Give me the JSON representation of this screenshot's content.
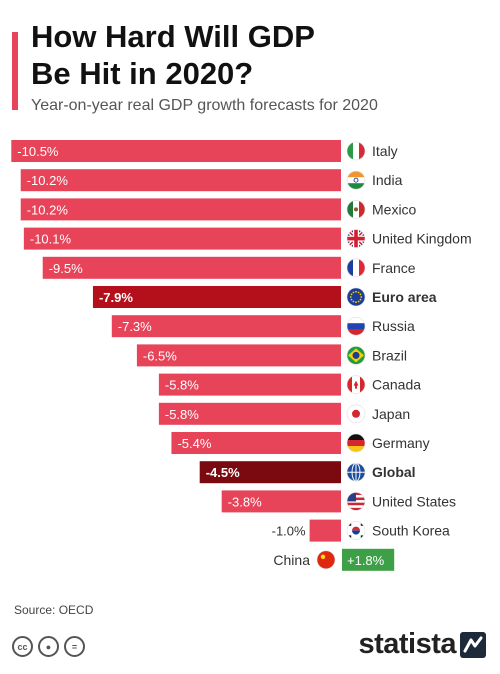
{
  "header": {
    "title_line1": "How Hard Will GDP",
    "title_line2": "Be Hit in 2020?",
    "subtitle": "Year-on-year real GDP growth forecasts for 2020"
  },
  "footer": {
    "source": "Source: OECD",
    "brand": "statista",
    "license_icons": [
      "cc-icon",
      "by-icon",
      "nd-icon"
    ]
  },
  "colors": {
    "negative": "#e84459",
    "highlight_euro": "#b3101c",
    "highlight_global": "#7a0a10",
    "positive": "#3ea046",
    "accent": "#e84459"
  },
  "chart_data": {
    "type": "bar",
    "orientation": "horizontal",
    "unit": "%",
    "xlim": [
      -10.5,
      1.8
    ],
    "categories": [
      "Italy",
      "India",
      "Mexico",
      "United Kingdom",
      "France",
      "Euro area",
      "Russia",
      "Brazil",
      "Canada",
      "Japan",
      "Germany",
      "Global",
      "United States",
      "South Korea",
      "China"
    ],
    "values": [
      -10.5,
      -10.2,
      -10.2,
      -10.1,
      -9.5,
      -7.9,
      -7.3,
      -6.5,
      -5.8,
      -5.8,
      -5.4,
      -4.5,
      -3.8,
      -1.0,
      1.8
    ],
    "labels": [
      "-10.5%",
      "-10.2%",
      "-10.2%",
      "-10.1%",
      "-9.5%",
      "-7.9%",
      "-7.3%",
      "-6.5%",
      "-5.8%",
      "-5.8%",
      "-5.4%",
      "-4.5%",
      "-3.8%",
      "-1.0%",
      "+1.8%"
    ],
    "highlighted": [
      "Euro area",
      "Global"
    ],
    "flags": [
      "italy-flag-icon",
      "india-flag-icon",
      "mexico-flag-icon",
      "uk-flag-icon",
      "france-flag-icon",
      "eu-flag-icon",
      "russia-flag-icon",
      "brazil-flag-icon",
      "canada-flag-icon",
      "japan-flag-icon",
      "germany-flag-icon",
      "globe-icon",
      "us-flag-icon",
      "south-korea-flag-icon",
      "china-flag-icon"
    ]
  }
}
